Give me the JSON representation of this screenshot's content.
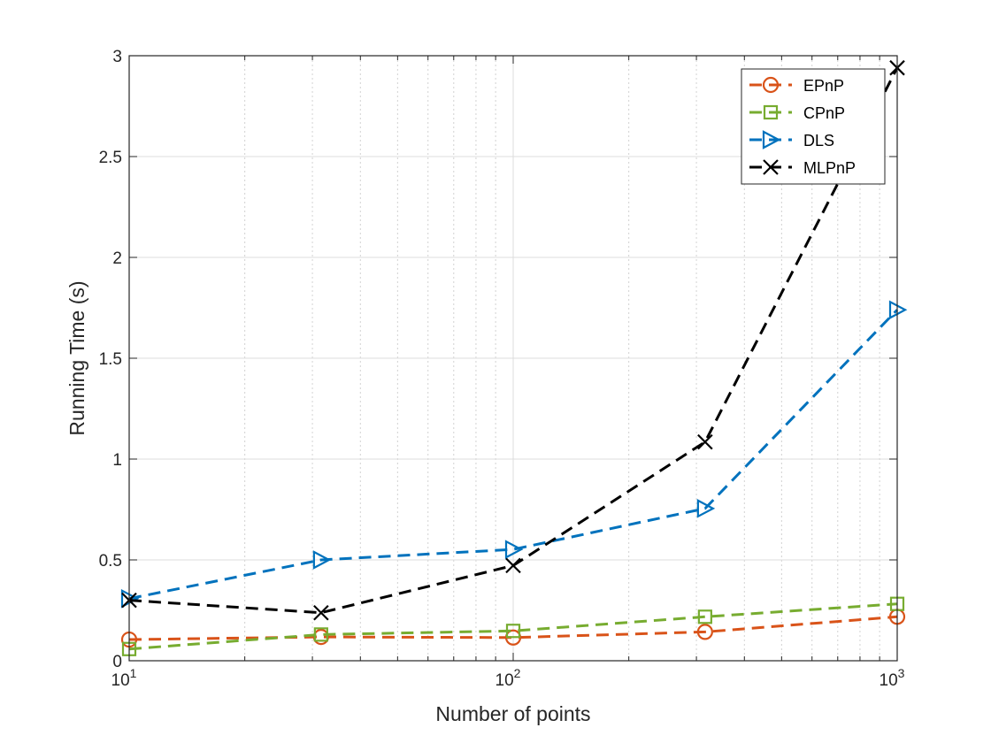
{
  "chart_data": {
    "type": "line",
    "title": "",
    "xlabel": "Number of points",
    "ylabel": "Running Time (s)",
    "x_scale": "log",
    "xlim": [
      10,
      1000
    ],
    "ylim": [
      0,
      3
    ],
    "grid": true,
    "legend_position": "top-right",
    "x": [
      10,
      31.6,
      100,
      316,
      1000
    ],
    "x_ticks": [
      {
        "value": 10,
        "base": "10",
        "exp": "1"
      },
      {
        "value": 100,
        "base": "10",
        "exp": "2"
      },
      {
        "value": 1000,
        "base": "10",
        "exp": "3"
      }
    ],
    "y_ticks": [
      {
        "value": 0,
        "label": "0"
      },
      {
        "value": 0.5,
        "label": "0.5"
      },
      {
        "value": 1,
        "label": "1"
      },
      {
        "value": 1.5,
        "label": "1.5"
      },
      {
        "value": 2,
        "label": "2"
      },
      {
        "value": 2.5,
        "label": "2.5"
      },
      {
        "value": 3,
        "label": "3"
      }
    ],
    "series": [
      {
        "name": "EPnP",
        "color": "#D95319",
        "marker": "circle",
        "values": [
          0.105,
          0.118,
          0.115,
          0.143,
          0.218
        ]
      },
      {
        "name": "CPnP",
        "color": "#77AC30",
        "marker": "square",
        "values": [
          0.058,
          0.13,
          0.148,
          0.218,
          0.282
        ]
      },
      {
        "name": "DLS",
        "color": "#0072BD",
        "marker": "triangle-right",
        "values": [
          0.308,
          0.5,
          0.552,
          0.755,
          1.74
        ]
      },
      {
        "name": "MLPnP",
        "color": "#000000",
        "marker": "x",
        "values": [
          0.3,
          0.238,
          0.472,
          1.085,
          2.94
        ]
      }
    ]
  }
}
